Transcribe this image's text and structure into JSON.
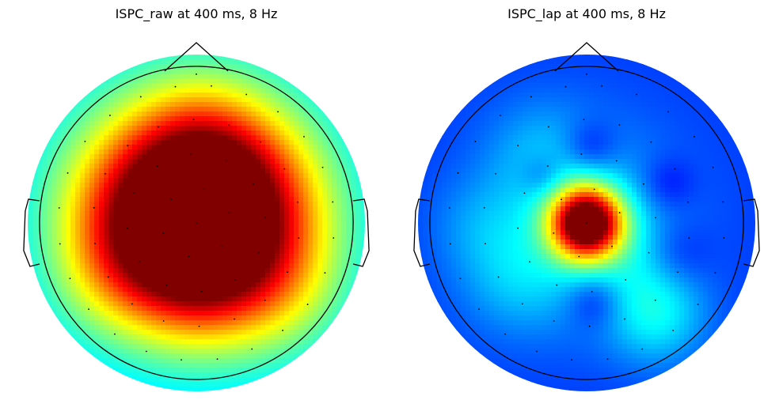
{
  "chart_data": [
    {
      "type": "heatmap",
      "title": "ISPC_raw at 400 ms, 8 Hz",
      "colormap": "jet",
      "colorbar": false,
      "electrode_markers": "dots",
      "field_blobs": [
        {
          "nx": 0.0,
          "ny": 0.08,
          "r": 0.55,
          "amp": 0.7
        },
        {
          "nx": -0.3,
          "ny": 0.05,
          "r": 0.35,
          "amp": 0.25
        },
        {
          "nx": 0.28,
          "ny": 0.05,
          "r": 0.35,
          "amp": 0.25
        },
        {
          "nx": 0.0,
          "ny": -0.35,
          "r": 0.3,
          "amp": 0.2
        },
        {
          "nx": 0.05,
          "ny": 0.45,
          "r": 0.3,
          "amp": 0.15
        },
        {
          "nx": 0.55,
          "ny": -0.45,
          "r": 0.3,
          "amp": 0.12
        },
        {
          "nx": -0.55,
          "ny": -0.35,
          "r": 0.28,
          "amp": 0.1
        }
      ],
      "base_level": 0.28,
      "vlim": [
        0,
        1
      ]
    },
    {
      "type": "heatmap",
      "title": "ISPC_lap at 400 ms, 8 Hz",
      "colormap": "jet",
      "colorbar": false,
      "electrode_markers": "dots",
      "field_blobs": [
        {
          "nx": 0.0,
          "ny": 0.0,
          "r": 0.16,
          "amp": 0.88
        },
        {
          "nx": 0.45,
          "ny": -0.6,
          "r": 0.22,
          "amp": 0.16
        },
        {
          "nx": -0.45,
          "ny": -0.35,
          "r": 0.26,
          "amp": 0.1
        },
        {
          "nx": 0.35,
          "ny": -0.25,
          "r": 0.22,
          "amp": 0.06
        },
        {
          "nx": -0.3,
          "ny": 0.45,
          "r": 0.25,
          "amp": 0.08
        },
        {
          "nx": -0.7,
          "ny": 0.0,
          "r": 0.22,
          "amp": 0.06
        },
        {
          "nx": 0.0,
          "ny": 0.0,
          "r": 0.45,
          "amp": 0.14
        },
        {
          "nx": 0.05,
          "ny": -0.5,
          "r": 0.12,
          "amp": -0.1
        },
        {
          "nx": 0.02,
          "ny": 0.48,
          "r": 0.12,
          "amp": -0.1
        },
        {
          "nx": -0.28,
          "ny": 0.3,
          "r": 0.1,
          "amp": -0.08
        },
        {
          "nx": 0.52,
          "ny": 0.25,
          "r": 0.12,
          "amp": -0.08
        },
        {
          "nx": 0.58,
          "ny": -0.2,
          "r": 0.15,
          "amp": -0.08
        }
      ],
      "base_level": 0.18,
      "vlim": [
        0,
        1
      ]
    }
  ]
}
